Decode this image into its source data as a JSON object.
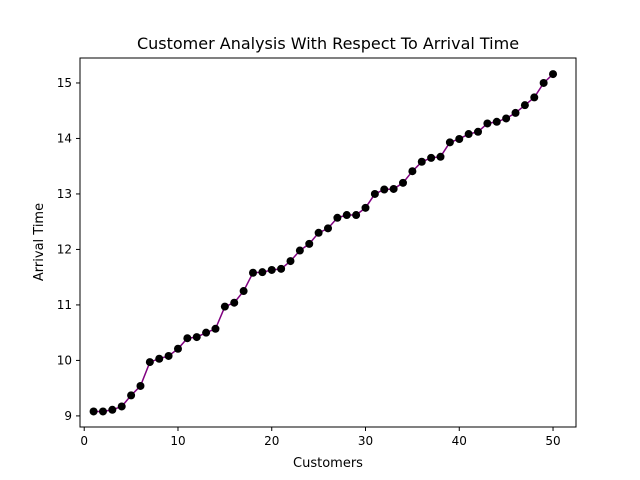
{
  "chart_data": {
    "type": "line",
    "title": "Customer Analysis With Respect To Arrival Time",
    "xlabel": "Customers",
    "ylabel": "Arrival Time",
    "xlim": [
      -0.45,
      52.45
    ],
    "ylim": [
      8.8,
      15.45
    ],
    "xticks": [
      0,
      10,
      20,
      30,
      40,
      50
    ],
    "yticks": [
      9,
      10,
      11,
      12,
      13,
      14,
      15
    ],
    "grid": false,
    "line_color": "#800080",
    "marker_color": "#000000",
    "series": [
      {
        "x": [
          1,
          2,
          3,
          4,
          5,
          6,
          7,
          8,
          9,
          10,
          11,
          12,
          13,
          14,
          15,
          16,
          17,
          18,
          19,
          20,
          21,
          22,
          23,
          24,
          25,
          26,
          27,
          28,
          29,
          30,
          31,
          32,
          33,
          34,
          35,
          36,
          37,
          38,
          39,
          40,
          41,
          42,
          43,
          44,
          45,
          46,
          47,
          48,
          49,
          50
        ],
        "y": [
          9.08,
          9.08,
          9.11,
          9.17,
          9.37,
          9.54,
          9.97,
          10.03,
          10.08,
          10.21,
          10.4,
          10.42,
          10.5,
          10.57,
          10.97,
          11.04,
          11.25,
          11.58,
          11.59,
          11.63,
          11.65,
          11.79,
          11.98,
          12.1,
          12.3,
          12.38,
          12.57,
          12.62,
          12.62,
          12.75,
          13.0,
          13.08,
          13.09,
          13.2,
          13.41,
          13.58,
          13.65,
          13.67,
          13.93,
          13.99,
          14.08,
          14.12,
          14.27,
          14.3,
          14.36,
          14.46,
          14.6,
          14.74,
          15.0,
          15.16
        ]
      }
    ]
  }
}
